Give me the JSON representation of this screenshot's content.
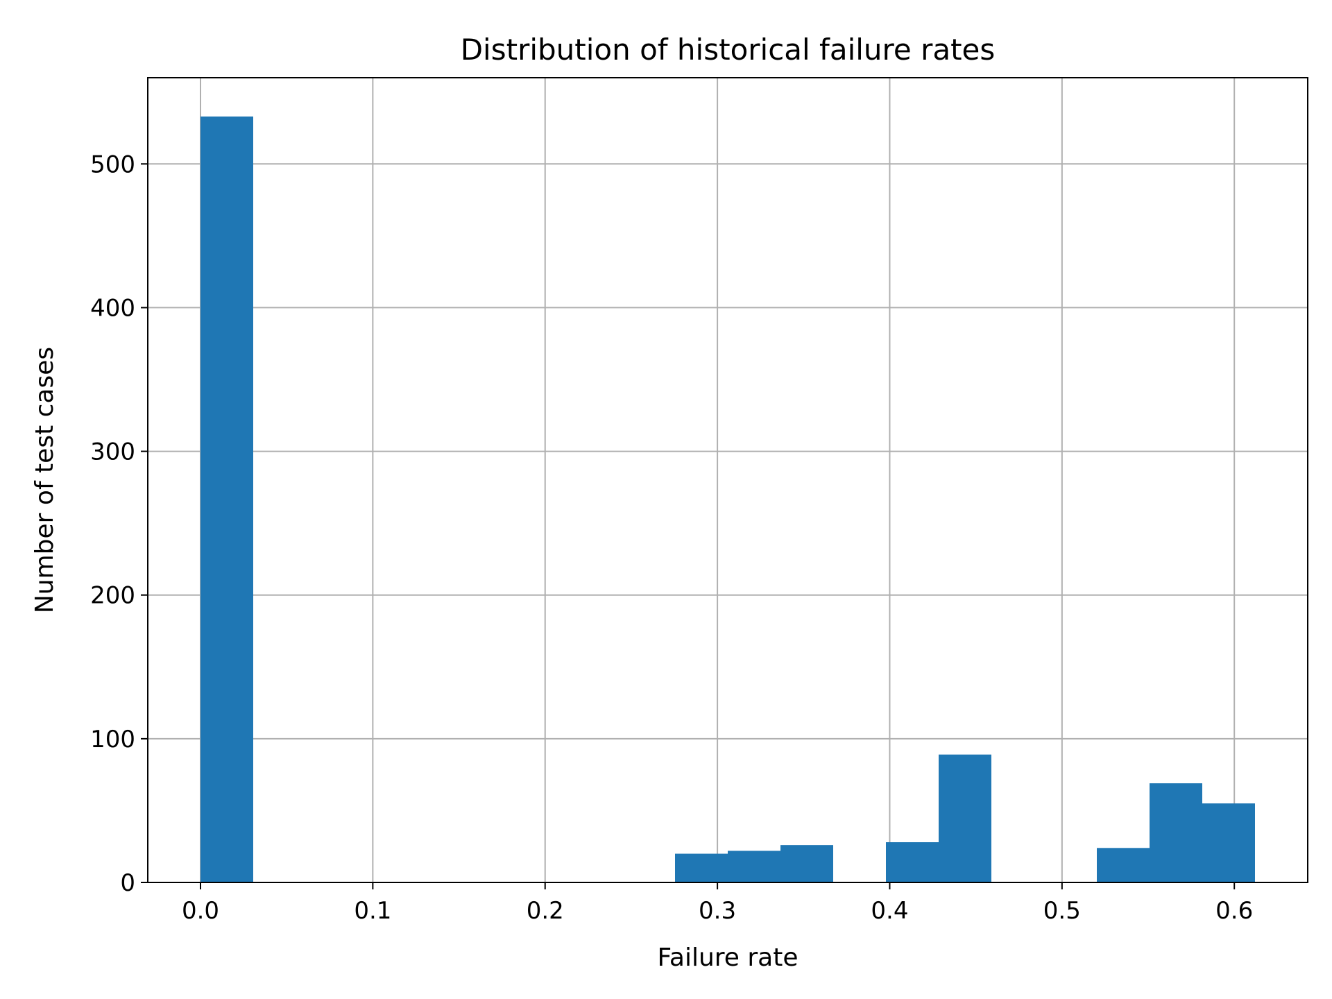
{
  "chart_data": {
    "type": "bar",
    "title": "Distribution of historical failure rates",
    "xlabel": "Failure rate",
    "ylabel": "Number of test cases",
    "xlim": [
      -0.0306,
      0.6426
    ],
    "ylim": [
      0,
      560
    ],
    "xticks": [
      0.0,
      0.1,
      0.2,
      0.3,
      0.4,
      0.5,
      0.6
    ],
    "xtick_labels": [
      "0.0",
      "0.1",
      "0.2",
      "0.3",
      "0.4",
      "0.5",
      "0.6"
    ],
    "yticks": [
      0,
      100,
      200,
      300,
      400,
      500
    ],
    "ytick_labels": [
      "0",
      "100",
      "200",
      "300",
      "400",
      "500"
    ],
    "grid": true,
    "bar_color": "#1f77b4",
    "bins": [
      {
        "x0": 0.0,
        "x1": 0.0306,
        "value": 533
      },
      {
        "x0": 0.0306,
        "x1": 0.0612,
        "value": 0
      },
      {
        "x0": 0.0612,
        "x1": 0.0918,
        "value": 0
      },
      {
        "x0": 0.0918,
        "x1": 0.1224,
        "value": 0
      },
      {
        "x0": 0.1224,
        "x1": 0.153,
        "value": 0
      },
      {
        "x0": 0.153,
        "x1": 0.1836,
        "value": 0
      },
      {
        "x0": 0.1836,
        "x1": 0.2142,
        "value": 0
      },
      {
        "x0": 0.2142,
        "x1": 0.2448,
        "value": 0
      },
      {
        "x0": 0.2448,
        "x1": 0.2754,
        "value": 0
      },
      {
        "x0": 0.2754,
        "x1": 0.306,
        "value": 20
      },
      {
        "x0": 0.306,
        "x1": 0.3366,
        "value": 22
      },
      {
        "x0": 0.3366,
        "x1": 0.3672,
        "value": 26
      },
      {
        "x0": 0.3672,
        "x1": 0.3978,
        "value": 0
      },
      {
        "x0": 0.3978,
        "x1": 0.4284,
        "value": 28
      },
      {
        "x0": 0.4284,
        "x1": 0.459,
        "value": 89
      },
      {
        "x0": 0.459,
        "x1": 0.4896,
        "value": 0
      },
      {
        "x0": 0.4896,
        "x1": 0.5202,
        "value": 0
      },
      {
        "x0": 0.5202,
        "x1": 0.5508,
        "value": 24
      },
      {
        "x0": 0.5508,
        "x1": 0.5814,
        "value": 69
      },
      {
        "x0": 0.5814,
        "x1": 0.612,
        "value": 55
      }
    ]
  }
}
